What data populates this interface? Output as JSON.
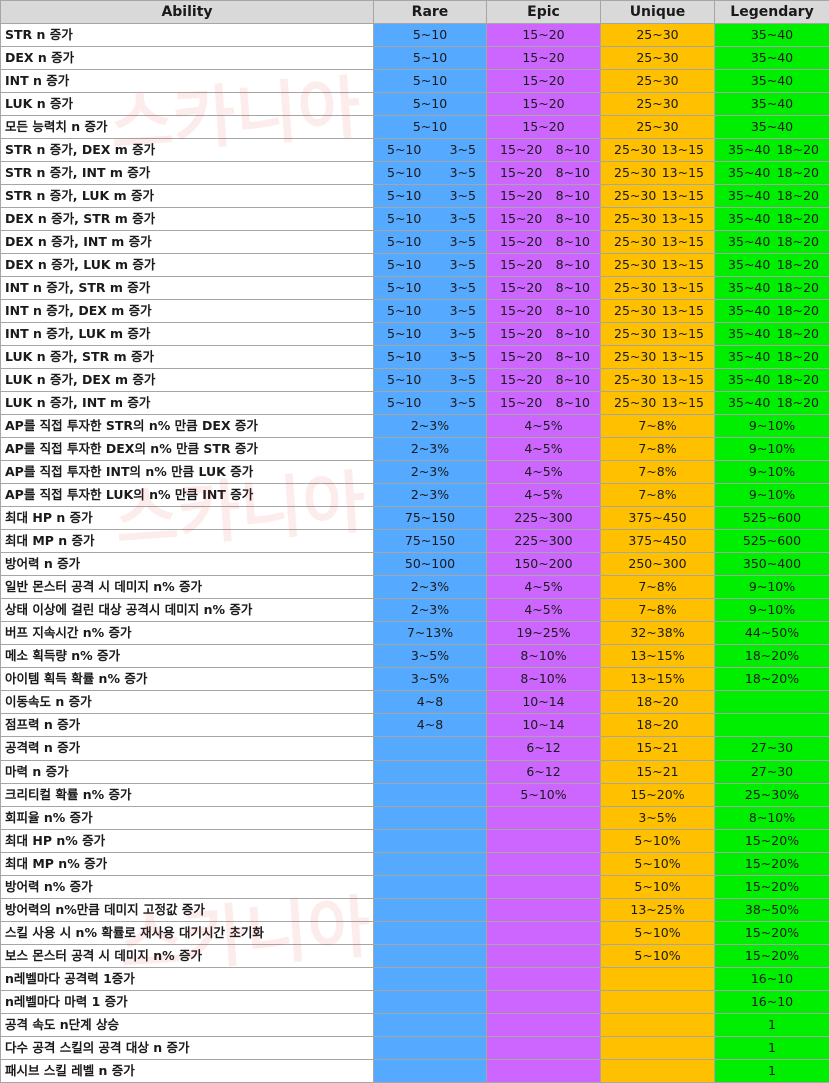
{
  "watermark": [
    "스카니아",
    "스카니아",
    "스카니아"
  ],
  "headers": {
    "ability": "Ability",
    "rare": "Rare",
    "epic": "Epic",
    "unique": "Unique",
    "legendary": "Legendary"
  },
  "rows": [
    {
      "ability": "STR n 증가",
      "rare": [
        "5~10"
      ],
      "epic": [
        "15~20"
      ],
      "unique": [
        "25~30"
      ],
      "legendary": [
        "35~40"
      ]
    },
    {
      "ability": "DEX n 증가",
      "rare": [
        "5~10"
      ],
      "epic": [
        "15~20"
      ],
      "unique": [
        "25~30"
      ],
      "legendary": [
        "35~40"
      ]
    },
    {
      "ability": "INT n 증가",
      "rare": [
        "5~10"
      ],
      "epic": [
        "15~20"
      ],
      "unique": [
        "25~30"
      ],
      "legendary": [
        "35~40"
      ]
    },
    {
      "ability": "LUK n 증가",
      "rare": [
        "5~10"
      ],
      "epic": [
        "15~20"
      ],
      "unique": [
        "25~30"
      ],
      "legendary": [
        "35~40"
      ]
    },
    {
      "ability": "모든 능력치 n 증가",
      "rare": [
        "5~10"
      ],
      "epic": [
        "15~20"
      ],
      "unique": [
        "25~30"
      ],
      "legendary": [
        "35~40"
      ]
    },
    {
      "ability": "STR n 증가, DEX m 증가",
      "rare": [
        "5~10",
        "3~5"
      ],
      "epic": [
        "15~20",
        "8~10"
      ],
      "unique": [
        "25~30",
        "13~15"
      ],
      "legendary": [
        "35~40",
        "18~20"
      ]
    },
    {
      "ability": "STR n 증가, INT m 증가",
      "rare": [
        "5~10",
        "3~5"
      ],
      "epic": [
        "15~20",
        "8~10"
      ],
      "unique": [
        "25~30",
        "13~15"
      ],
      "legendary": [
        "35~40",
        "18~20"
      ]
    },
    {
      "ability": "STR n 증가, LUK m 증가",
      "rare": [
        "5~10",
        "3~5"
      ],
      "epic": [
        "15~20",
        "8~10"
      ],
      "unique": [
        "25~30",
        "13~15"
      ],
      "legendary": [
        "35~40",
        "18~20"
      ]
    },
    {
      "ability": "DEX n 증가, STR m 증가",
      "rare": [
        "5~10",
        "3~5"
      ],
      "epic": [
        "15~20",
        "8~10"
      ],
      "unique": [
        "25~30",
        "13~15"
      ],
      "legendary": [
        "35~40",
        "18~20"
      ]
    },
    {
      "ability": "DEX n 증가, INT m 증가",
      "rare": [
        "5~10",
        "3~5"
      ],
      "epic": [
        "15~20",
        "8~10"
      ],
      "unique": [
        "25~30",
        "13~15"
      ],
      "legendary": [
        "35~40",
        "18~20"
      ]
    },
    {
      "ability": "DEX n 증가, LUK m 증가",
      "rare": [
        "5~10",
        "3~5"
      ],
      "epic": [
        "15~20",
        "8~10"
      ],
      "unique": [
        "25~30",
        "13~15"
      ],
      "legendary": [
        "35~40",
        "18~20"
      ]
    },
    {
      "ability": "INT n 증가, STR m 증가",
      "rare": [
        "5~10",
        "3~5"
      ],
      "epic": [
        "15~20",
        "8~10"
      ],
      "unique": [
        "25~30",
        "13~15"
      ],
      "legendary": [
        "35~40",
        "18~20"
      ]
    },
    {
      "ability": "INT n 증가, DEX m 증가",
      "rare": [
        "5~10",
        "3~5"
      ],
      "epic": [
        "15~20",
        "8~10"
      ],
      "unique": [
        "25~30",
        "13~15"
      ],
      "legendary": [
        "35~40",
        "18~20"
      ]
    },
    {
      "ability": "INT n 증가, LUK m 증가",
      "rare": [
        "5~10",
        "3~5"
      ],
      "epic": [
        "15~20",
        "8~10"
      ],
      "unique": [
        "25~30",
        "13~15"
      ],
      "legendary": [
        "35~40",
        "18~20"
      ]
    },
    {
      "ability": "LUK n 증가, STR m 증가",
      "rare": [
        "5~10",
        "3~5"
      ],
      "epic": [
        "15~20",
        "8~10"
      ],
      "unique": [
        "25~30",
        "13~15"
      ],
      "legendary": [
        "35~40",
        "18~20"
      ]
    },
    {
      "ability": "LUK n 증가, DEX m 증가",
      "rare": [
        "5~10",
        "3~5"
      ],
      "epic": [
        "15~20",
        "8~10"
      ],
      "unique": [
        "25~30",
        "13~15"
      ],
      "legendary": [
        "35~40",
        "18~20"
      ]
    },
    {
      "ability": "LUK n 증가, INT m 증가",
      "rare": [
        "5~10",
        "3~5"
      ],
      "epic": [
        "15~20",
        "8~10"
      ],
      "unique": [
        "25~30",
        "13~15"
      ],
      "legendary": [
        "35~40",
        "18~20"
      ]
    },
    {
      "ability": "AP를 직접 투자한 STR의 n% 만큼 DEX 증가",
      "rare": [
        "2~3%"
      ],
      "epic": [
        "4~5%"
      ],
      "unique": [
        "7~8%"
      ],
      "legendary": [
        "9~10%"
      ]
    },
    {
      "ability": "AP를 직접 투자한 DEX의 n% 만큼 STR 증가",
      "rare": [
        "2~3%"
      ],
      "epic": [
        "4~5%"
      ],
      "unique": [
        "7~8%"
      ],
      "legendary": [
        "9~10%"
      ]
    },
    {
      "ability": "AP를 직접 투자한 INT의 n% 만큼 LUK 증가",
      "rare": [
        "2~3%"
      ],
      "epic": [
        "4~5%"
      ],
      "unique": [
        "7~8%"
      ],
      "legendary": [
        "9~10%"
      ]
    },
    {
      "ability": "AP를 직접 투자한 LUK의 n% 만큼 INT 증가",
      "rare": [
        "2~3%"
      ],
      "epic": [
        "4~5%"
      ],
      "unique": [
        "7~8%"
      ],
      "legendary": [
        "9~10%"
      ]
    },
    {
      "ability": "최대 HP n 증가",
      "rare": [
        "75~150"
      ],
      "epic": [
        "225~300"
      ],
      "unique": [
        "375~450"
      ],
      "legendary": [
        "525~600"
      ]
    },
    {
      "ability": "최대 MP n 증가",
      "rare": [
        "75~150"
      ],
      "epic": [
        "225~300"
      ],
      "unique": [
        "375~450"
      ],
      "legendary": [
        "525~600"
      ]
    },
    {
      "ability": "방어력 n 증가",
      "rare": [
        "50~100"
      ],
      "epic": [
        "150~200"
      ],
      "unique": [
        "250~300"
      ],
      "legendary": [
        "350~400"
      ]
    },
    {
      "ability": "일반 몬스터 공격 시 데미지 n% 증가",
      "rare": [
        "2~3%"
      ],
      "epic": [
        "4~5%"
      ],
      "unique": [
        "7~8%"
      ],
      "legendary": [
        "9~10%"
      ]
    },
    {
      "ability": "상태 이상에 걸린 대상 공격시 데미지 n% 증가",
      "rare": [
        "2~3%"
      ],
      "epic": [
        "4~5%"
      ],
      "unique": [
        "7~8%"
      ],
      "legendary": [
        "9~10%"
      ]
    },
    {
      "ability": "버프 지속시간 n% 증가",
      "rare": [
        "7~13%"
      ],
      "epic": [
        "19~25%"
      ],
      "unique": [
        "32~38%"
      ],
      "legendary": [
        "44~50%"
      ]
    },
    {
      "ability": "메소 획득량 n% 증가",
      "rare": [
        "3~5%"
      ],
      "epic": [
        "8~10%"
      ],
      "unique": [
        "13~15%"
      ],
      "legendary": [
        "18~20%"
      ]
    },
    {
      "ability": "아이템 획득 확률 n% 증가",
      "rare": [
        "3~5%"
      ],
      "epic": [
        "8~10%"
      ],
      "unique": [
        "13~15%"
      ],
      "legendary": [
        "18~20%"
      ]
    },
    {
      "ability": "이동속도 n 증가",
      "rare": [
        "4~8"
      ],
      "epic": [
        "10~14"
      ],
      "unique": [
        "18~20"
      ],
      "legendary": []
    },
    {
      "ability": "점프력 n 증가",
      "rare": [
        "4~8"
      ],
      "epic": [
        "10~14"
      ],
      "unique": [
        "18~20"
      ],
      "legendary": []
    },
    {
      "ability": "공격력 n 증가",
      "rare": [],
      "epic": [
        "6~12"
      ],
      "unique": [
        "15~21"
      ],
      "legendary": [
        "27~30"
      ]
    },
    {
      "ability": "마력 n 증가",
      "rare": [],
      "epic": [
        "6~12"
      ],
      "unique": [
        "15~21"
      ],
      "legendary": [
        "27~30"
      ]
    },
    {
      "ability": "크리티컬 확률 n% 증가",
      "rare": [],
      "epic": [
        "5~10%"
      ],
      "unique": [
        "15~20%"
      ],
      "legendary": [
        "25~30%"
      ]
    },
    {
      "ability": "회피율 n% 증가",
      "rare": [],
      "epic": [],
      "unique": [
        "3~5%"
      ],
      "legendary": [
        "8~10%"
      ]
    },
    {
      "ability": "최대 HP n% 증가",
      "rare": [],
      "epic": [],
      "unique": [
        "5~10%"
      ],
      "legendary": [
        "15~20%"
      ]
    },
    {
      "ability": "최대 MP n% 증가",
      "rare": [],
      "epic": [],
      "unique": [
        "5~10%"
      ],
      "legendary": [
        "15~20%"
      ]
    },
    {
      "ability": "방어력 n% 증가",
      "rare": [],
      "epic": [],
      "unique": [
        "5~10%"
      ],
      "legendary": [
        "15~20%"
      ]
    },
    {
      "ability": "방어력의 n%만큼 데미지 고정값 증가",
      "rare": [],
      "epic": [],
      "unique": [
        "13~25%"
      ],
      "legendary": [
        "38~50%"
      ]
    },
    {
      "ability": "스킬 사용 시 n% 확률로 재사용 대기시간 초기화",
      "rare": [],
      "epic": [],
      "unique": [
        "5~10%"
      ],
      "legendary": [
        "15~20%"
      ]
    },
    {
      "ability": "보스 몬스터 공격 시 데미지 n% 증가",
      "rare": [],
      "epic": [],
      "unique": [
        "5~10%"
      ],
      "legendary": [
        "15~20%"
      ]
    },
    {
      "ability": "n레벨마다 공격력 1증가",
      "rare": [],
      "epic": [],
      "unique": [],
      "legendary": [
        "16~10"
      ]
    },
    {
      "ability": "n레벨마다 마력 1 증가",
      "rare": [],
      "epic": [],
      "unique": [],
      "legendary": [
        "16~10"
      ]
    },
    {
      "ability": "공격 속도 n단계 상승",
      "rare": [],
      "epic": [],
      "unique": [],
      "legendary": [
        "1"
      ]
    },
    {
      "ability": "다수 공격 스킬의 공격 대상 n 증가",
      "rare": [],
      "epic": [],
      "unique": [],
      "legendary": [
        "1"
      ]
    },
    {
      "ability": "패시브 스킬 레벨 n 증가",
      "rare": [],
      "epic": [],
      "unique": [],
      "legendary": [
        "1"
      ]
    }
  ]
}
